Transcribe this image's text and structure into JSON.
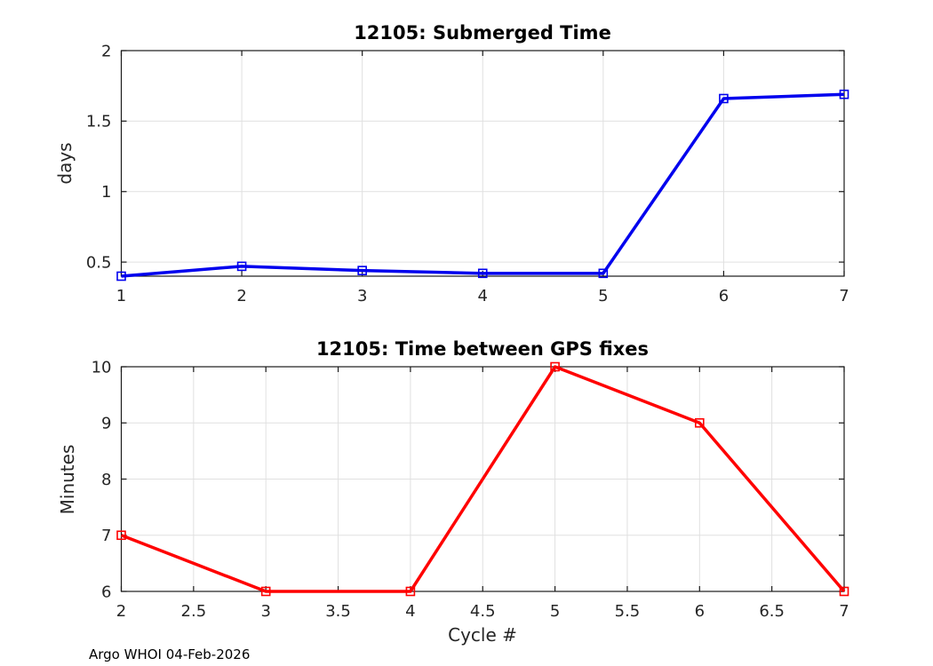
{
  "figure": {
    "background": "#ffffff"
  },
  "footer": {
    "text": "Argo WHOI 04-Feb-2026"
  },
  "colors": {
    "grid": "#e0e0e0",
    "axis": "#1a1a1a",
    "tick_text": "#262626",
    "title_text": "#000000",
    "blue_series": "#0000ee",
    "red_series": "#ff0000"
  },
  "chart_data": [
    {
      "type": "line",
      "title": "12105: Submerged Time",
      "xlabel": "",
      "ylabel": "days",
      "x": [
        1,
        2,
        3,
        4,
        5,
        6,
        7
      ],
      "values": [
        0.4,
        0.47,
        0.44,
        0.42,
        0.42,
        1.66,
        1.69
      ],
      "series_color": "#0000ee",
      "marker": "square-open",
      "line_width": 3.5,
      "xlim": [
        1,
        7
      ],
      "ylim": [
        0.4,
        2
      ],
      "xticks": [
        1,
        2,
        3,
        4,
        5,
        6,
        7
      ],
      "yticks": [
        0.5,
        1,
        1.5,
        2
      ],
      "grid": true,
      "legend": "none"
    },
    {
      "type": "line",
      "title": "12105: Time between GPS fixes",
      "xlabel": "Cycle #",
      "ylabel": "Minutes",
      "x": [
        2,
        3,
        4,
        5,
        6,
        7
      ],
      "values": [
        7,
        6,
        6,
        10,
        9,
        6
      ],
      "series_color": "#ff0000",
      "marker": "square-open",
      "line_width": 3.5,
      "xlim": [
        2,
        7
      ],
      "ylim": [
        6,
        10
      ],
      "xticks": [
        2,
        2.5,
        3,
        3.5,
        4,
        4.5,
        5,
        5.5,
        6,
        6.5,
        7
      ],
      "yticks": [
        6,
        7,
        8,
        9,
        10
      ],
      "grid": true,
      "legend": "none"
    }
  ]
}
